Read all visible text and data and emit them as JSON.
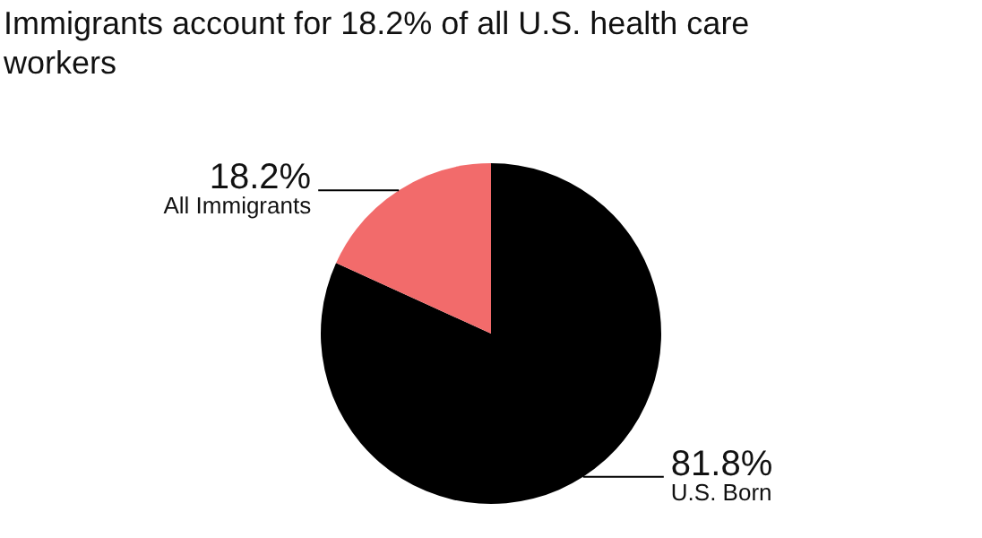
{
  "chart_data": {
    "type": "pie",
    "title": "Immigrants account for 18.2% of all U.S. health care workers",
    "categories": [
      "U.S. Born",
      "All Immigrants"
    ],
    "values": [
      81.8,
      18.2
    ],
    "value_labels": [
      "81.8%",
      "18.2%"
    ],
    "colors": [
      "#000000",
      "#f26b6b"
    ],
    "legend": false
  }
}
